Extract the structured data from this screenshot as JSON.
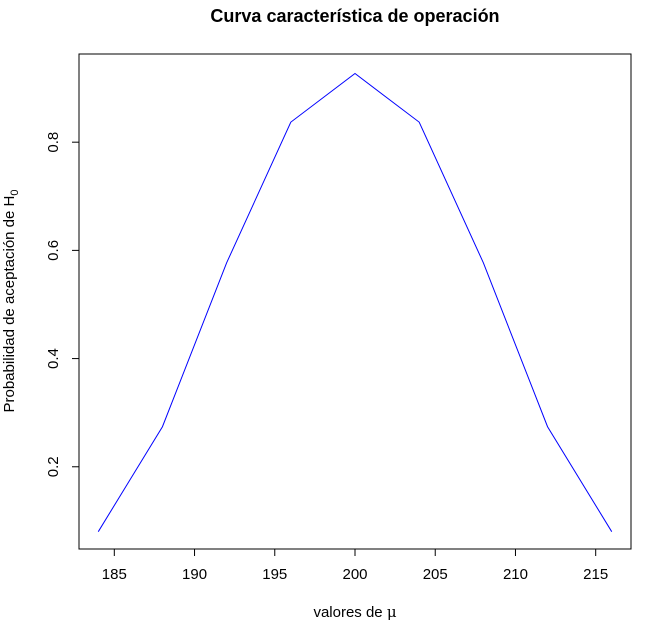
{
  "chart_data": {
    "type": "line",
    "title": "Curva característica de operación",
    "xlabel": {
      "text": "valores de ",
      "symbol": "μ"
    },
    "ylabel": {
      "text": "Probabilidad de aceptación de H",
      "subscript": "0"
    },
    "xlim": [
      182.8,
      217.2
    ],
    "ylim": [
      0.048,
      0.963
    ],
    "x_ticks": [
      185,
      190,
      195,
      200,
      205,
      210,
      215
    ],
    "x_tick_labels": [
      "185",
      "190",
      "195",
      "200",
      "205",
      "210",
      "215"
    ],
    "y_ticks": [
      0.2,
      0.4,
      0.6,
      0.8
    ],
    "y_tick_labels": [
      "0.2",
      "0.4",
      "0.6",
      "0.8"
    ],
    "grid": false,
    "legend": "none",
    "line_color": "#0000ff",
    "series": [
      {
        "x": [
          184,
          188,
          192,
          196,
          200,
          204,
          208,
          212,
          216
        ],
        "y": [
          0.08,
          0.274,
          0.577,
          0.837,
          0.927,
          0.837,
          0.577,
          0.274,
          0.08
        ]
      }
    ]
  }
}
